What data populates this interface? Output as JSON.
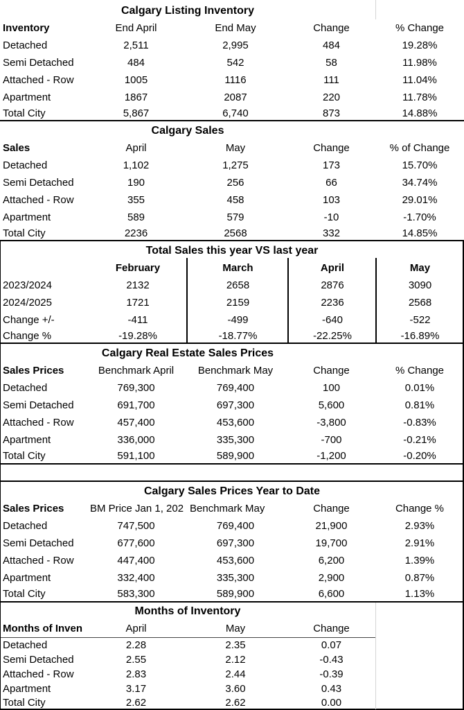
{
  "sections": [
    {
      "title": "Calgary Listing Inventory",
      "header": [
        "Inventory",
        "End April",
        "End May",
        "Change",
        "% Change"
      ],
      "rows": [
        [
          "Detached",
          "2,511",
          "2,995",
          "484",
          "19.28%"
        ],
        [
          "Semi Detached",
          "484",
          "542",
          "58",
          "11.98%"
        ],
        [
          "Attached - Row",
          "1005",
          "1116",
          "111",
          "11.04%"
        ],
        [
          "Apartment",
          "1867",
          "2087",
          "220",
          "11.78%"
        ],
        [
          "Total City",
          "5,867",
          "6,740",
          "873",
          "14.88%"
        ]
      ]
    },
    {
      "title": "Calgary Sales",
      "header": [
        "Sales",
        "April",
        "May",
        "Change",
        "% of Change"
      ],
      "rows": [
        [
          "Detached",
          "1,102",
          "1,275",
          "173",
          "15.70%"
        ],
        [
          "Semi Detached",
          "190",
          "256",
          "66",
          "34.74%"
        ],
        [
          "Attached - Row",
          "355",
          "458",
          "103",
          "29.01%"
        ],
        [
          "Apartment",
          "589",
          "579",
          "-10",
          "-1.70%"
        ],
        [
          "Total City",
          "2236",
          "2568",
          "332",
          "14.85%"
        ]
      ]
    },
    {
      "title": "Total Sales this year  VS last year",
      "header": [
        "",
        "February",
        "March",
        "April",
        "May"
      ],
      "rows": [
        [
          "2023/2024",
          "2132",
          "2658",
          "2876",
          "3090"
        ],
        [
          "2024/2025",
          "1721",
          "2159",
          "2236",
          "2568"
        ],
        [
          "Change +/-",
          "-411",
          "-499",
          "-640",
          "-522"
        ],
        [
          "Change %",
          "-19.28%",
          "-18.77%",
          "-22.25%",
          "-16.89%"
        ]
      ]
    },
    {
      "title": "Calgary Real Estate Sales Prices",
      "header": [
        "Sales Prices",
        "Benchmark April",
        "Benchmark May",
        "Change",
        "% Change"
      ],
      "rows": [
        [
          "Detached",
          "769,300",
          "769,400",
          "100",
          "0.01%"
        ],
        [
          "Semi Detached",
          "691,700",
          "697,300",
          "5,600",
          "0.81%"
        ],
        [
          "Attached - Row",
          "457,400",
          "453,600",
          "-3,800",
          "-0.83%"
        ],
        [
          "Apartment",
          "336,000",
          "335,300",
          "-700",
          "-0.21%"
        ],
        [
          "Total City",
          "591,100",
          "589,900",
          "-1,200",
          "-0.20%"
        ]
      ]
    },
    {
      "title": "Calgary Sales Prices Year to Date",
      "header": [
        "Sales Prices",
        "BM Price Jan 1, 202",
        "Benchmark May",
        "Change",
        "Change %"
      ],
      "rows": [
        [
          "Detached",
          "747,500",
          "769,400",
          "21,900",
          "2.93%"
        ],
        [
          "Semi Detached",
          "677,600",
          "697,300",
          "19,700",
          "2.91%"
        ],
        [
          "Attached - Row",
          "447,400",
          "453,600",
          "6,200",
          "1.39%"
        ],
        [
          "Apartment",
          "332,400",
          "335,300",
          "2,900",
          "0.87%"
        ],
        [
          "Total City",
          "583,300",
          "589,900",
          "6,600",
          "1.13%"
        ]
      ]
    },
    {
      "title": "Months of Inventory",
      "header": [
        "Months of Inven",
        "April",
        "May",
        "Change",
        ""
      ],
      "rows": [
        [
          "Detached",
          "2.28",
          "2.35",
          "0.07",
          ""
        ],
        [
          "Semi Detached",
          "2.55",
          "2.12",
          "-0.43",
          ""
        ],
        [
          "Attached - Row",
          "2.83",
          "2.44",
          "-0.39",
          ""
        ],
        [
          "Apartment",
          "3.17",
          "3.60",
          "0.43",
          ""
        ],
        [
          "Total City",
          "2.62",
          "2.62",
          "0.00",
          ""
        ]
      ]
    }
  ]
}
